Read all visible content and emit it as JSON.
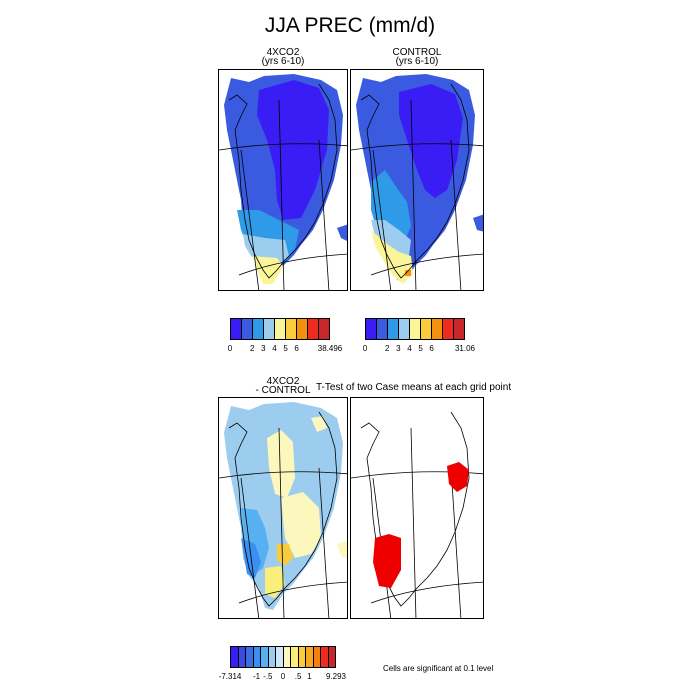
{
  "title": "JJA PREC (mm/d)",
  "panels": {
    "top_left": {
      "line1": "4XCO2",
      "line2": "(yrs 6-10)"
    },
    "top_right": {
      "line1": "CONTROL",
      "line2": "(yrs 6-10)"
    },
    "bottom_left": {
      "line1": "4XCO2",
      "line2": "- CONTROL"
    },
    "bottom_right": {
      "title": "T-Test of two Case means at each grid point"
    }
  },
  "colorbars": {
    "abs_left": {
      "colors": [
        "#3a1cf5",
        "#3a5be0",
        "#2f9ae8",
        "#9ccdee",
        "#fbf59a",
        "#f9cc3d",
        "#f3900e",
        "#ef2a1e",
        "#c8262a"
      ],
      "ticks": [
        "0",
        "2",
        "3",
        "4",
        "5",
        "6",
        "38.496"
      ]
    },
    "abs_right": {
      "colors": [
        "#3a1cf5",
        "#3a5be0",
        "#2f9ae8",
        "#9ccdee",
        "#fbf59a",
        "#f9cc3d",
        "#f3900e",
        "#ef2a1e",
        "#c8262a"
      ],
      "ticks": [
        "0",
        "2",
        "3",
        "4",
        "5",
        "6",
        "31.06"
      ]
    },
    "diff": {
      "colors": [
        "#3a1cf5",
        "#3c4ae6",
        "#3a6fe4",
        "#3b8ff0",
        "#57b0f2",
        "#9ccdee",
        "#cfe6f7",
        "#fbf7bd",
        "#fbef7b",
        "#f9cc3d",
        "#f7a721",
        "#f3800f",
        "#ef2a1e",
        "#c8262a"
      ],
      "ticks": [
        "-7.314",
        "-1",
        "-.5",
        "0",
        ".5",
        "1",
        "9.293"
      ]
    }
  },
  "note": "Cells are significant at 0.1 level"
}
